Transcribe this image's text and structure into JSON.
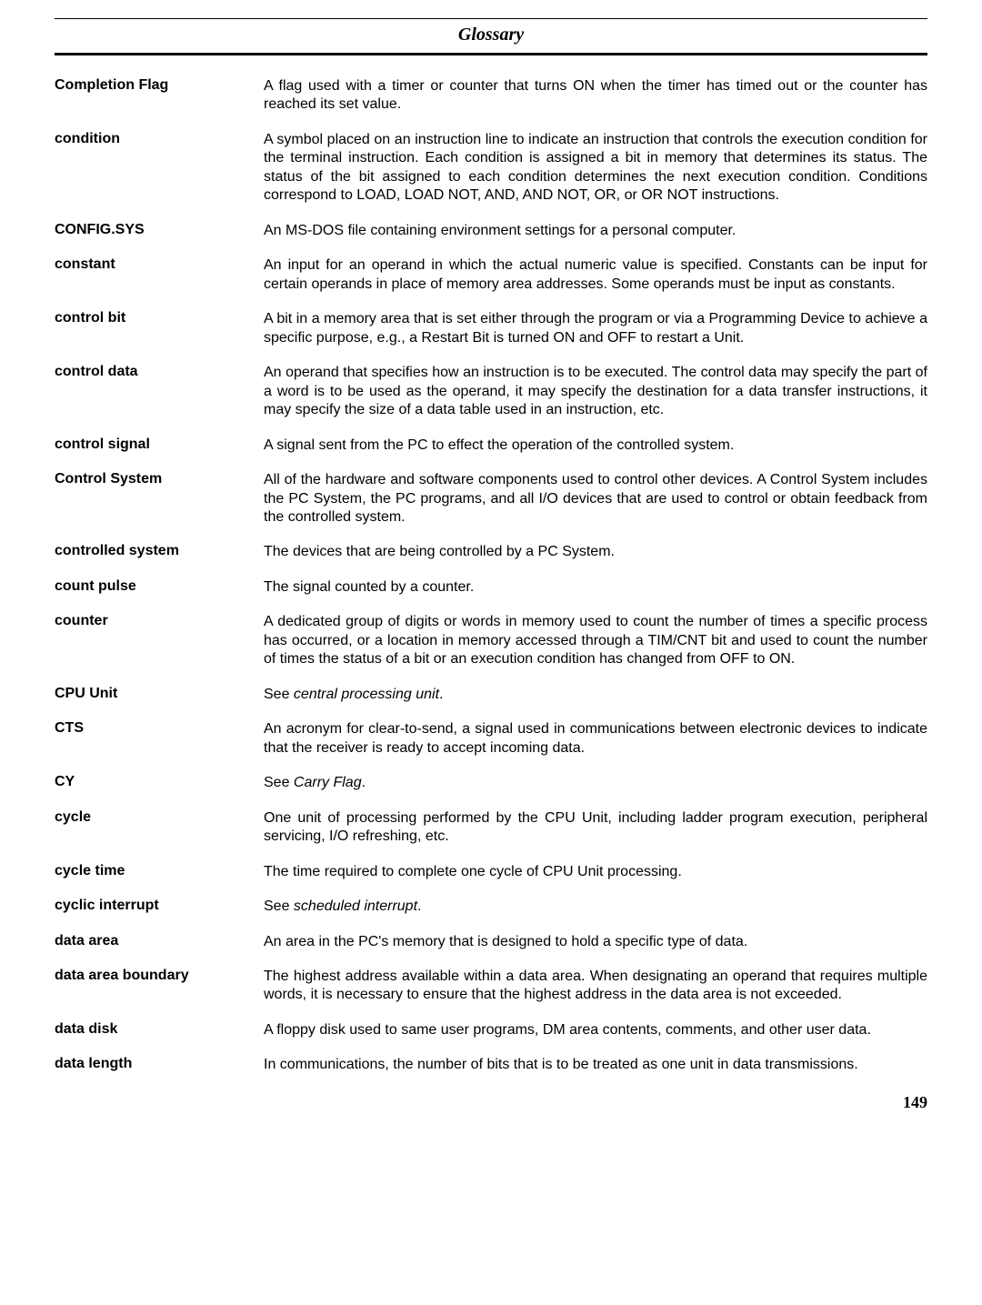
{
  "page": {
    "title": "Glossary",
    "number": "149"
  },
  "entries": [
    {
      "term": "Completion Flag",
      "def": "A flag used with a timer or counter that turns ON when the timer has timed out or the counter has reached its set value."
    },
    {
      "term": "condition",
      "def": "A symbol placed on an instruction line to indicate an instruction that controls the execution condition for the terminal instruction. Each condition is assigned a bit in memory that determines its status. The status of the bit assigned to each condition determines the next execution condition. Conditions correspond to LOAD, LOAD NOT, AND, AND NOT, OR, or OR NOT instructions."
    },
    {
      "term": "CONFIG.SYS",
      "def": "An MS-DOS file containing environment settings for a personal computer."
    },
    {
      "term": "constant",
      "def": "An input for an operand in which the actual numeric value is specified. Constants can be input for certain operands in place of memory area addresses. Some operands must be input as constants."
    },
    {
      "term": "control bit",
      "def": "A bit in a memory area that is set either through the program or via a Programming Device to achieve a specific purpose, e.g., a Restart Bit is turned ON and OFF to restart a Unit."
    },
    {
      "term": "control data",
      "def": "An operand that specifies how an instruction is to be executed. The control data may specify the part of a word is to be used as the operand, it may specify the destination for a data transfer instructions, it may specify the size of a data table used in an instruction, etc."
    },
    {
      "term": "control signal",
      "def": "A signal sent from the PC to effect the operation of the controlled system."
    },
    {
      "term": "Control System",
      "def": "All of the hardware and software components used to control other devices. A Control System includes the PC System, the PC programs, and all I/O devices that are used to control or obtain feedback from the controlled system."
    },
    {
      "term": "controlled system",
      "def": "The devices that are being controlled by a PC System."
    },
    {
      "term": "count pulse",
      "def": "The signal counted by a counter."
    },
    {
      "term": "counter",
      "def": "A dedicated group of digits or words in memory used to count the number of times a specific process has occurred, or a location in memory accessed through a TIM/CNT bit and used to count the number of times the status of a bit or an execution condition has changed from OFF to ON."
    },
    {
      "term": "CPU Unit",
      "def": "See <em>central processing unit</em>."
    },
    {
      "term": "CTS",
      "def": "An acronym for clear-to-send, a signal used in communications between electronic devices to indicate that the receiver is ready to accept incoming data."
    },
    {
      "term": "CY",
      "def": "See <em>Carry Flag</em>."
    },
    {
      "term": "cycle",
      "def": "One unit of processing performed by the CPU Unit, including ladder program execution, peripheral servicing, I/O refreshing, etc."
    },
    {
      "term": "cycle time",
      "def": "The time required to complete one cycle of CPU Unit processing."
    },
    {
      "term": "cyclic interrupt",
      "def": "See <em>scheduled interrupt</em>."
    },
    {
      "term": "data area",
      "def": "An area in the PC's memory that is designed to hold a specific type of data."
    },
    {
      "term": "data area boundary",
      "def": "The highest address available within a data area. When designating an operand that requires multiple words, it is necessary to ensure that the highest address in the data area is not exceeded."
    },
    {
      "term": "data disk",
      "def": "A floppy disk used to same user programs, DM area contents, comments, and other user data."
    },
    {
      "term": "data length",
      "def": "In communications, the number of bits that is to be treated as one unit in data transmissions."
    }
  ]
}
